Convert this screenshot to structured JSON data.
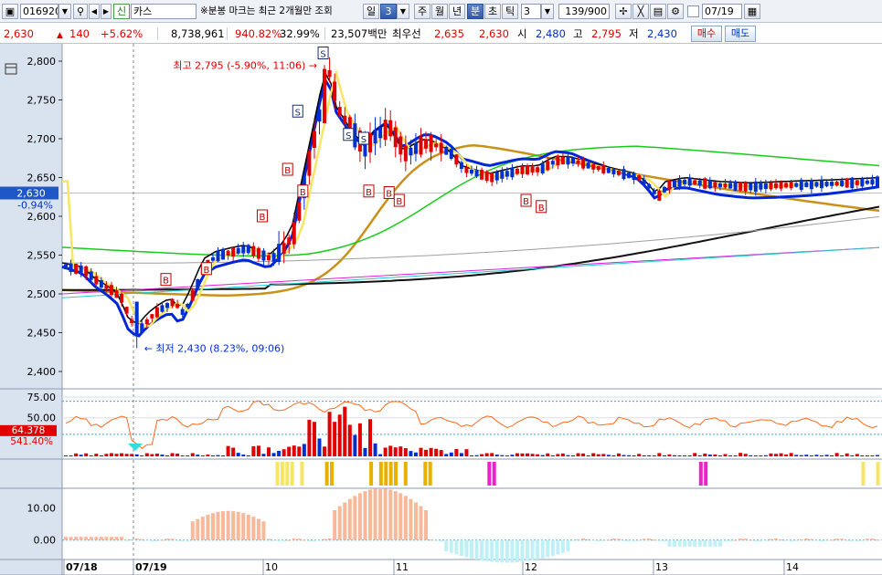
{
  "toolbar": {
    "code": "016920",
    "market_badge": "신",
    "name": "카스",
    "notice": "※분봉 마크는 최근 2개월만 조회",
    "period_day": "일",
    "interval_value": "3",
    "period_week": "주",
    "period_month": "월",
    "period_year": "년",
    "period_minute": "분",
    "period_second": "초",
    "period_tick": "틱",
    "unit_value": "3",
    "count": "139/900",
    "date_checkbox": "",
    "date": "07/19"
  },
  "quote": {
    "price": "2,630",
    "change": "▲",
    "change_value": "140",
    "change_pct": "+5.62%",
    "volume": "8,738,961",
    "volume_ratio": "940.82%",
    "turnover": "32.99%",
    "amount": "23,507백만",
    "best_label": "최우선",
    "best_ask": "2,635",
    "best_bid": "2,630",
    "open_label": "시",
    "open": "2,480",
    "high_label": "고",
    "high": "2,795",
    "low_label": "저",
    "low": "2,430",
    "buy_label": "매수",
    "sell_label": "매도"
  },
  "colors": {
    "up": "#e00000",
    "down": "#0030d0",
    "panel_bg": "#d8e3ef"
  },
  "chart_data": {
    "type": "candlestick",
    "y_ticks": [
      "2,800",
      "2,750",
      "2,700",
      "2,650",
      "2,600",
      "2,550",
      "2,500",
      "2,450",
      "2,400"
    ],
    "ylim": [
      2380,
      2820
    ],
    "current_price_label": "2,630",
    "current_change_label": "-0.94%",
    "annotation_high": "최고 2,795 (-5.90%, 11:06)",
    "annotation_low": "최저 2,430 (8.23%, 09:06)",
    "markers_s": "S",
    "markers_b": "B",
    "x_labels": [
      "07/18",
      "07/19",
      "10",
      "11",
      "12",
      "13",
      "14"
    ],
    "indicator1": {
      "ticks": [
        "75.00",
        "50.00"
      ],
      "value_label": "64.378",
      "ratio_label": "541.40%"
    },
    "indicator2": {
      "ticks": [
        "10.00",
        "0.00"
      ]
    },
    "ma_colors": [
      "#ffffff",
      "#ff0000",
      "#f5e663",
      "#0026d6",
      "#000000",
      "#c9911a",
      "#19cc19",
      "#111111",
      "#a0a0a0",
      "#dd22dd",
      "#22cccc"
    ]
  }
}
